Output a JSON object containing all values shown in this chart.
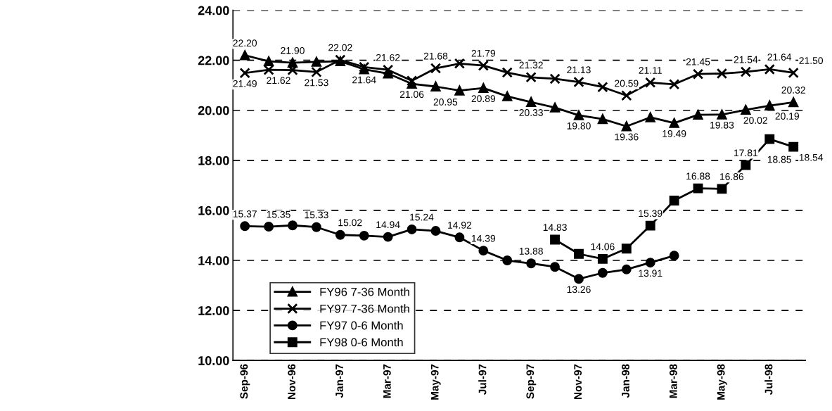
{
  "chart_data": {
    "type": "line",
    "categories": [
      "Sep-96",
      null,
      "Nov-96",
      null,
      "Jan-97",
      null,
      "Mar-97",
      null,
      "May-97",
      null,
      "Jul-97",
      null,
      "Sep-97",
      null,
      "Nov-97",
      null,
      "Jan-98",
      null,
      "Mar-98",
      null,
      "May-98",
      null,
      "Jul-98",
      null
    ],
    "series": [
      {
        "name": "FY96 7-36 Month",
        "color": "#000000",
        "marker": "triangle",
        "values": [
          22.2,
          21.96,
          21.9,
          21.94,
          21.96,
          21.64,
          21.47,
          21.06,
          20.95,
          20.79,
          20.89,
          20.56,
          20.33,
          20.11,
          19.8,
          19.65,
          19.36,
          19.72,
          19.49,
          19.82,
          19.83,
          20.02,
          20.19,
          20.32
        ],
        "value_labels": [
          "22.20",
          null,
          "21.90",
          null,
          null,
          "21.64",
          null,
          "21.06",
          "20.95",
          null,
          "20.89",
          null,
          "20.33",
          null,
          "19.80",
          null,
          "19.36",
          null,
          "19.49",
          null,
          "19.83",
          "20.02",
          "20.19",
          "20.32"
        ]
      },
      {
        "name": "FY97 7-36 Month",
        "color": "#000000",
        "marker": "cross",
        "values": [
          21.49,
          21.62,
          21.61,
          21.53,
          22.02,
          21.73,
          21.62,
          21.18,
          21.68,
          21.87,
          21.79,
          21.51,
          21.32,
          21.26,
          21.13,
          20.93,
          20.59,
          21.11,
          21.04,
          21.45,
          21.47,
          21.54,
          21.64,
          21.5
        ],
        "value_labels": [
          "21.49",
          "21.62",
          null,
          "21.53",
          "22.02",
          null,
          "21.62",
          null,
          "21.68",
          null,
          "21.79",
          null,
          "21.32",
          null,
          "21.13",
          null,
          "20.59",
          "21.11",
          null,
          "21.45",
          null,
          "21.54",
          "21.64",
          "21.50"
        ]
      },
      {
        "name": "FY97 0-6 Month",
        "color": "#000000",
        "marker": "circle",
        "values": [
          15.37,
          15.35,
          15.4,
          15.33,
          15.02,
          14.99,
          14.94,
          15.24,
          15.18,
          14.92,
          14.39,
          14.0,
          13.88,
          13.74,
          13.26,
          13.5,
          13.64,
          13.91,
          14.19,
          null,
          null,
          null,
          null,
          null
        ],
        "value_labels": [
          "15.37",
          "15.35",
          null,
          "15.33",
          "15.02",
          null,
          "14.94",
          "15.24",
          null,
          "14.92",
          "14.39",
          null,
          "13.88",
          null,
          "13.26",
          null,
          null,
          "13.91",
          null,
          null,
          null,
          null,
          null,
          null
        ]
      },
      {
        "name": "FY98 0-6 Month",
        "color": "#000000",
        "marker": "square",
        "values": [
          null,
          null,
          null,
          null,
          null,
          null,
          null,
          null,
          null,
          null,
          null,
          null,
          null,
          14.83,
          14.26,
          14.06,
          14.47,
          15.39,
          16.39,
          16.88,
          16.86,
          17.81,
          18.85,
          18.54
        ],
        "value_labels": [
          null,
          null,
          null,
          null,
          null,
          null,
          null,
          null,
          null,
          null,
          null,
          null,
          null,
          "14.83",
          null,
          "14.06",
          null,
          "15.39",
          null,
          "16.88",
          "16.86",
          "17.81",
          "18.85",
          "18.54"
        ]
      }
    ],
    "ylim": [
      10,
      24
    ],
    "yticks": [
      {
        "value": 10,
        "label": "10.00"
      },
      {
        "value": 12,
        "label": "12.00"
      },
      {
        "value": 14,
        "label": "14.00"
      },
      {
        "value": 16,
        "label": "16.00"
      },
      {
        "value": 18,
        "label": "18.00"
      },
      {
        "value": 20,
        "label": "20.00"
      },
      {
        "value": 22,
        "label": "22.00"
      },
      {
        "value": 24,
        "label": "24.00"
      }
    ],
    "grid": "y",
    "legend": "bottom left",
    "line_style": "solid"
  }
}
